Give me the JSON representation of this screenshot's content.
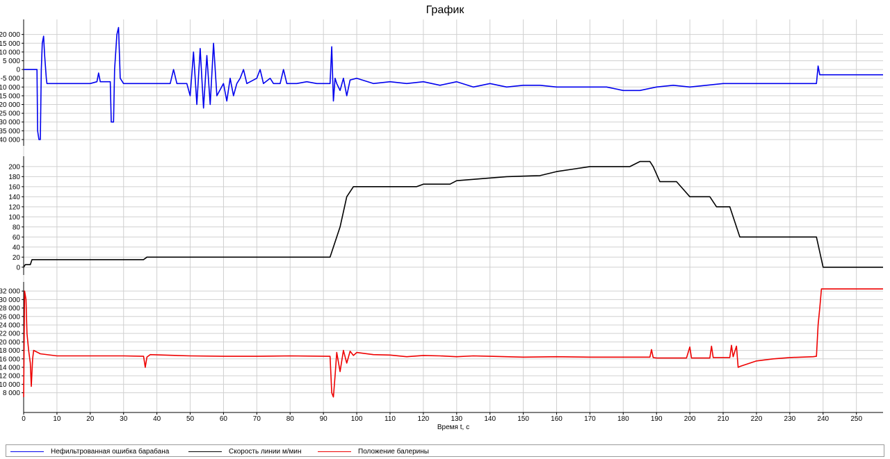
{
  "window": {
    "title": "График"
  },
  "chart_data": {
    "type": "line",
    "title": "График",
    "xlabel": "Время t, с",
    "xlim": [
      0,
      258
    ],
    "x_ticks": [
      0,
      10,
      20,
      30,
      40,
      50,
      60,
      70,
      80,
      90,
      100,
      110,
      120,
      130,
      140,
      150,
      160,
      170,
      180,
      190,
      200,
      210,
      220,
      230,
      240,
      250
    ],
    "grid": true,
    "legend_position": "bottom",
    "panels": [
      {
        "series_name": "Нефильтрованная ошибка барабана",
        "color": "#0000ee",
        "ylim": [
          -42000,
          27000
        ],
        "y_ticks": [
          -40000,
          -35000,
          -30000,
          -25000,
          -20000,
          -15000,
          -10000,
          -5000,
          0,
          5000,
          10000,
          15000,
          20000
        ],
        "y_tick_labels": [
          "-40 000",
          "-35 000",
          "-30 000",
          "-25 000",
          "-20 000",
          "-15 000",
          "-10 000",
          "-5 000",
          "0",
          "5 000",
          "10 000",
          "15 000",
          "20 000"
        ],
        "points": [
          [
            0,
            0
          ],
          [
            4,
            0
          ],
          [
            4.2,
            -35000
          ],
          [
            4.6,
            -40000
          ],
          [
            5,
            -40000
          ],
          [
            5.3,
            0
          ],
          [
            5.6,
            15000
          ],
          [
            6,
            19000
          ],
          [
            6.3,
            8000
          ],
          [
            6.8,
            -5000
          ],
          [
            7,
            -8000
          ],
          [
            10,
            -8000
          ],
          [
            15,
            -8000
          ],
          [
            20,
            -8000
          ],
          [
            22,
            -7000
          ],
          [
            22.5,
            -2000
          ],
          [
            23,
            -7000
          ],
          [
            26,
            -7000
          ],
          [
            26.3,
            -30000
          ],
          [
            27,
            -30000
          ],
          [
            27.3,
            0
          ],
          [
            28,
            20000
          ],
          [
            28.5,
            24000
          ],
          [
            29,
            -5000
          ],
          [
            30,
            -8000
          ],
          [
            35,
            -8000
          ],
          [
            40,
            -8000
          ],
          [
            44,
            -8000
          ],
          [
            45,
            0
          ],
          [
            46,
            -8000
          ],
          [
            49,
            -8000
          ],
          [
            50,
            -15000
          ],
          [
            51,
            10000
          ],
          [
            52,
            -20000
          ],
          [
            53,
            12000
          ],
          [
            54,
            -22000
          ],
          [
            55,
            8000
          ],
          [
            56,
            -20000
          ],
          [
            57,
            15000
          ],
          [
            58,
            -15000
          ],
          [
            60,
            -8000
          ],
          [
            61,
            -18000
          ],
          [
            62,
            -5000
          ],
          [
            63,
            -15000
          ],
          [
            64,
            -8000
          ],
          [
            65,
            -5000
          ],
          [
            66,
            0
          ],
          [
            67,
            -8000
          ],
          [
            70,
            -5000
          ],
          [
            71,
            0
          ],
          [
            72,
            -8000
          ],
          [
            74,
            -5000
          ],
          [
            75,
            -8000
          ],
          [
            77,
            -8000
          ],
          [
            78,
            0
          ],
          [
            79,
            -8000
          ],
          [
            82,
            -8000
          ],
          [
            85,
            -7000
          ],
          [
            88,
            -8000
          ],
          [
            91,
            -8000
          ],
          [
            92,
            -8000
          ],
          [
            92.5,
            13000
          ],
          [
            93,
            -18000
          ],
          [
            93.5,
            -5000
          ],
          [
            94,
            -8000
          ],
          [
            95,
            -12000
          ],
          [
            96,
            -5000
          ],
          [
            97,
            -15000
          ],
          [
            98,
            -6000
          ],
          [
            100,
            -5000
          ],
          [
            105,
            -8000
          ],
          [
            110,
            -7000
          ],
          [
            115,
            -8000
          ],
          [
            120,
            -7000
          ],
          [
            125,
            -9000
          ],
          [
            130,
            -7000
          ],
          [
            135,
            -10000
          ],
          [
            140,
            -8000
          ],
          [
            145,
            -10000
          ],
          [
            150,
            -9000
          ],
          [
            155,
            -9000
          ],
          [
            160,
            -10000
          ],
          [
            165,
            -10000
          ],
          [
            170,
            -10000
          ],
          [
            175,
            -10000
          ],
          [
            180,
            -12000
          ],
          [
            185,
            -12000
          ],
          [
            190,
            -10000
          ],
          [
            195,
            -9000
          ],
          [
            200,
            -10000
          ],
          [
            205,
            -9000
          ],
          [
            210,
            -8000
          ],
          [
            214,
            -8000
          ],
          [
            215,
            -8000
          ],
          [
            220,
            -8000
          ],
          [
            225,
            -8000
          ],
          [
            230,
            -8000
          ],
          [
            237,
            -8000
          ],
          [
            238,
            -8000
          ],
          [
            238.5,
            2000
          ],
          [
            239,
            -3000
          ],
          [
            239.5,
            -3000
          ],
          [
            258,
            -3000
          ]
        ]
      },
      {
        "series_name": "Скорость линии м/мин",
        "color": "#000000",
        "ylim": [
          -10,
          215
        ],
        "y_ticks": [
          0,
          20,
          40,
          60,
          80,
          100,
          120,
          140,
          160,
          180,
          200
        ],
        "y_tick_labels": [
          "0",
          "20",
          "40",
          "60",
          "80",
          "100",
          "120",
          "140",
          "160",
          "180",
          "200"
        ],
        "points": [
          [
            0,
            0
          ],
          [
            0.5,
            5
          ],
          [
            1,
            5
          ],
          [
            2,
            5
          ],
          [
            2.5,
            15
          ],
          [
            30,
            15
          ],
          [
            36,
            15
          ],
          [
            37,
            20
          ],
          [
            92,
            20
          ],
          [
            93,
            40
          ],
          [
            94,
            60
          ],
          [
            95,
            80
          ],
          [
            96,
            110
          ],
          [
            97,
            140
          ],
          [
            98,
            150
          ],
          [
            99,
            160
          ],
          [
            118,
            160
          ],
          [
            120,
            165
          ],
          [
            128,
            165
          ],
          [
            130,
            172
          ],
          [
            145,
            180
          ],
          [
            155,
            182
          ],
          [
            160,
            190
          ],
          [
            165,
            195
          ],
          [
            170,
            200
          ],
          [
            182,
            200
          ],
          [
            185,
            210
          ],
          [
            188,
            210
          ],
          [
            189,
            200
          ],
          [
            190,
            185
          ],
          [
            191,
            170
          ],
          [
            196,
            170
          ],
          [
            198,
            155
          ],
          [
            200,
            140
          ],
          [
            206,
            140
          ],
          [
            208,
            120
          ],
          [
            212,
            120
          ],
          [
            213,
            100
          ],
          [
            214,
            80
          ],
          [
            215,
            60
          ],
          [
            238,
            60
          ],
          [
            239,
            30
          ],
          [
            240,
            0
          ],
          [
            258,
            0
          ]
        ]
      },
      {
        "series_name": "Положение балерины",
        "color": "#ee0000",
        "ylim": [
          4000,
          33500
        ],
        "y_ticks": [
          8000,
          10000,
          12000,
          14000,
          16000,
          18000,
          20000,
          22000,
          24000,
          26000,
          28000,
          30000,
          32000
        ],
        "y_tick_labels": [
          "8 000",
          "10 000",
          "12 000",
          "14 000",
          "16 000",
          "18 000",
          "20 000",
          "22 000",
          "24 000",
          "26 000",
          "28 000",
          "30 000",
          "32 000"
        ],
        "points": [
          [
            0,
            7000
          ],
          [
            0.3,
            32000
          ],
          [
            0.7,
            30000
          ],
          [
            1,
            22000
          ],
          [
            1.5,
            18000
          ],
          [
            2,
            15000
          ],
          [
            2.3,
            9500
          ],
          [
            2.7,
            16000
          ],
          [
            3,
            18000
          ],
          [
            5,
            17200
          ],
          [
            10,
            16700
          ],
          [
            20,
            16700
          ],
          [
            30,
            16700
          ],
          [
            36,
            16600
          ],
          [
            36.5,
            14000
          ],
          [
            37,
            16400
          ],
          [
            38,
            17000
          ],
          [
            50,
            16700
          ],
          [
            60,
            16600
          ],
          [
            70,
            16600
          ],
          [
            80,
            16700
          ],
          [
            91,
            16600
          ],
          [
            92,
            16600
          ],
          [
            92.5,
            8000
          ],
          [
            93,
            7000
          ],
          [
            93.5,
            12000
          ],
          [
            94,
            17500
          ],
          [
            95,
            13000
          ],
          [
            96,
            18000
          ],
          [
            97,
            15000
          ],
          [
            98,
            17800
          ],
          [
            99,
            16800
          ],
          [
            100,
            17500
          ],
          [
            105,
            17000
          ],
          [
            110,
            16900
          ],
          [
            115,
            16500
          ],
          [
            120,
            16800
          ],
          [
            125,
            16700
          ],
          [
            130,
            16500
          ],
          [
            135,
            16700
          ],
          [
            140,
            16600
          ],
          [
            150,
            16400
          ],
          [
            160,
            16500
          ],
          [
            170,
            16400
          ],
          [
            180,
            16400
          ],
          [
            185,
            16400
          ],
          [
            188,
            16400
          ],
          [
            188.5,
            18200
          ],
          [
            189,
            16300
          ],
          [
            190,
            16200
          ],
          [
            199,
            16200
          ],
          [
            200,
            18800
          ],
          [
            200.5,
            16200
          ],
          [
            206,
            16200
          ],
          [
            206.5,
            19000
          ],
          [
            207,
            16300
          ],
          [
            212,
            16300
          ],
          [
            212.5,
            19200
          ],
          [
            213,
            16500
          ],
          [
            214,
            19000
          ],
          [
            214.5,
            14000
          ],
          [
            215,
            14200
          ],
          [
            220,
            15500
          ],
          [
            225,
            16000
          ],
          [
            230,
            16300
          ],
          [
            237,
            16500
          ],
          [
            238,
            16600
          ],
          [
            238.5,
            24000
          ],
          [
            239,
            28000
          ],
          [
            239.5,
            32500
          ],
          [
            258,
            32500
          ]
        ]
      }
    ]
  },
  "legend": [
    {
      "label": "Нефильтрованная ошибка барабана",
      "color": "#0000ee"
    },
    {
      "label": "Скорость линии м/мин",
      "color": "#000000"
    },
    {
      "label": "Положение балерины",
      "color": "#ee0000"
    }
  ]
}
